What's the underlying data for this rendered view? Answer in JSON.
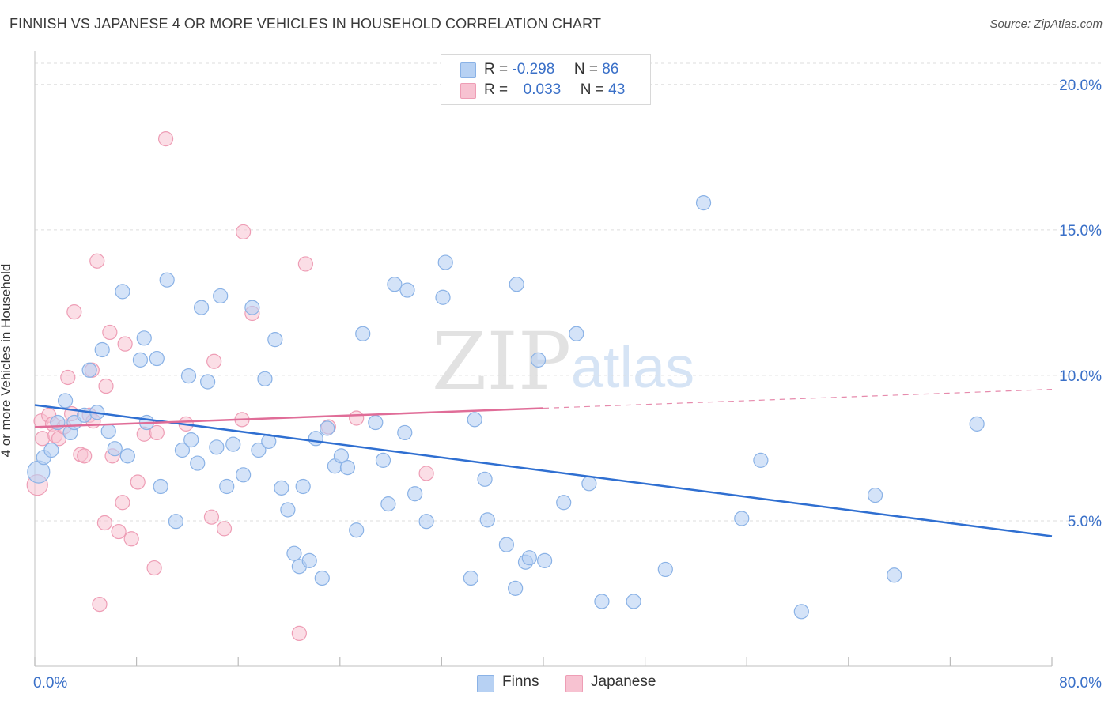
{
  "title": "FINNISH VS JAPANESE 4 OR MORE VEHICLES IN HOUSEHOLD CORRELATION CHART",
  "source": "Source: ZipAtlas.com",
  "watermark": {
    "zip": "ZIP",
    "atlas": "atlas"
  },
  "colors": {
    "finns_fill": "#b7d1f3",
    "finns_stroke": "#8ab2e6",
    "finns_line": "#2f6fd1",
    "japanese_fill": "#f7c2d1",
    "japanese_stroke": "#ee9db5",
    "japanese_line": "#e06d98",
    "axis_label": "#3a70c8",
    "grid": "#dddddd"
  },
  "legend": {
    "rows": [
      {
        "r_label": "R =",
        "r_value": "-0.298",
        "n_label": "N =",
        "n_value": "86"
      },
      {
        "r_label": "R =",
        "r_value": "0.033",
        "n_label": "N =",
        "n_value": "43"
      }
    ]
  },
  "bottom_legend": {
    "finns": "Finns",
    "japanese": "Japanese"
  },
  "chart_data": {
    "type": "scatter",
    "title": "FINNISH VS JAPANESE 4 OR MORE VEHICLES IN HOUSEHOLD CORRELATION CHART",
    "xlabel": "",
    "ylabel": "4 or more Vehicles in Household",
    "xlim": [
      0,
      80
    ],
    "ylim": [
      0,
      21
    ],
    "x_tick_labels": [
      "0.0%",
      "80.0%"
    ],
    "y_ticks": [
      5,
      10,
      15,
      20
    ],
    "y_tick_labels": [
      "5.0%",
      "10.0%",
      "15.0%",
      "20.0%"
    ],
    "grid": true,
    "legend_position": "top-center",
    "series": [
      {
        "name": "Finns",
        "r": -0.298,
        "n": 86,
        "trend": {
          "x": [
            0,
            80
          ],
          "y": [
            8.98,
            4.47
          ],
          "solid_until": 80
        },
        "points": [
          [
            0.3,
            6.68
          ],
          [
            0.7,
            7.18
          ],
          [
            1.3,
            7.43
          ],
          [
            1.8,
            8.38
          ],
          [
            2.4,
            9.13
          ],
          [
            2.8,
            8.03
          ],
          [
            3.1,
            8.38
          ],
          [
            3.9,
            8.63
          ],
          [
            4.3,
            10.18
          ],
          [
            4.9,
            8.73
          ],
          [
            5.3,
            10.88
          ],
          [
            5.8,
            8.08
          ],
          [
            6.3,
            7.48
          ],
          [
            7.3,
            7.23
          ],
          [
            6.9,
            12.88
          ],
          [
            8.3,
            10.53
          ],
          [
            8.6,
            11.28
          ],
          [
            8.8,
            8.38
          ],
          [
            9.6,
            10.58
          ],
          [
            9.9,
            6.18
          ],
          [
            10.4,
            13.28
          ],
          [
            11.1,
            4.98
          ],
          [
            11.6,
            7.43
          ],
          [
            12.1,
            9.98
          ],
          [
            12.3,
            7.78
          ],
          [
            12.8,
            6.98
          ],
          [
            13.1,
            12.33
          ],
          [
            13.6,
            9.78
          ],
          [
            14.3,
            7.53
          ],
          [
            14.6,
            12.73
          ],
          [
            15.1,
            6.18
          ],
          [
            15.6,
            7.63
          ],
          [
            16.4,
            6.58
          ],
          [
            17.1,
            12.33
          ],
          [
            17.6,
            7.43
          ],
          [
            18.1,
            9.88
          ],
          [
            18.4,
            7.73
          ],
          [
            18.9,
            11.23
          ],
          [
            19.4,
            6.13
          ],
          [
            19.9,
            5.38
          ],
          [
            20.4,
            3.88
          ],
          [
            20.8,
            3.43
          ],
          [
            21.1,
            6.18
          ],
          [
            21.6,
            3.63
          ],
          [
            22.1,
            7.83
          ],
          [
            22.6,
            3.03
          ],
          [
            23.0,
            8.18
          ],
          [
            23.6,
            6.88
          ],
          [
            24.1,
            7.23
          ],
          [
            24.6,
            6.83
          ],
          [
            25.3,
            4.68
          ],
          [
            25.8,
            11.43
          ],
          [
            26.8,
            8.38
          ],
          [
            27.4,
            7.08
          ],
          [
            27.8,
            5.58
          ],
          [
            28.3,
            13.13
          ],
          [
            29.3,
            12.93
          ],
          [
            29.1,
            8.03
          ],
          [
            29.9,
            5.93
          ],
          [
            30.8,
            4.98
          ],
          [
            32.1,
            12.68
          ],
          [
            32.3,
            13.88
          ],
          [
            34.6,
            8.48
          ],
          [
            34.3,
            3.03
          ],
          [
            35.4,
            6.43
          ],
          [
            35.6,
            5.03
          ],
          [
            37.1,
            4.18
          ],
          [
            37.8,
            2.68
          ],
          [
            37.9,
            13.13
          ],
          [
            38.6,
            3.58
          ],
          [
            38.9,
            3.73
          ],
          [
            39.6,
            10.53
          ],
          [
            40.1,
            3.63
          ],
          [
            41.6,
            5.63
          ],
          [
            42.6,
            11.43
          ],
          [
            43.6,
            6.28
          ],
          [
            44.6,
            2.23
          ],
          [
            47.1,
            2.23
          ],
          [
            49.6,
            3.33
          ],
          [
            52.6,
            15.93
          ],
          [
            55.6,
            5.08
          ],
          [
            57.1,
            7.08
          ],
          [
            60.3,
            1.88
          ],
          [
            66.1,
            5.88
          ],
          [
            67.6,
            3.13
          ],
          [
            74.1,
            8.33
          ]
        ]
      },
      {
        "name": "Japanese",
        "r": 0.033,
        "n": 43,
        "trend": {
          "x": [
            0,
            80
          ],
          "y": [
            8.22,
            9.52
          ],
          "solid_until": 40
        },
        "points": [
          [
            0.2,
            6.23
          ],
          [
            0.5,
            8.43
          ],
          [
            0.6,
            7.83
          ],
          [
            1.1,
            8.63
          ],
          [
            1.4,
            8.33
          ],
          [
            1.6,
            7.93
          ],
          [
            1.9,
            7.83
          ],
          [
            2.3,
            8.23
          ],
          [
            2.6,
            9.93
          ],
          [
            2.9,
            8.68
          ],
          [
            3.1,
            12.18
          ],
          [
            3.6,
            7.28
          ],
          [
            3.9,
            7.23
          ],
          [
            4.3,
            8.63
          ],
          [
            4.5,
            10.18
          ],
          [
            4.6,
            8.43
          ],
          [
            4.9,
            13.93
          ],
          [
            5.1,
            2.13
          ],
          [
            5.5,
            4.93
          ],
          [
            5.6,
            9.63
          ],
          [
            5.9,
            11.48
          ],
          [
            6.1,
            7.23
          ],
          [
            6.6,
            4.63
          ],
          [
            6.9,
            5.63
          ],
          [
            7.1,
            11.08
          ],
          [
            7.6,
            4.38
          ],
          [
            8.1,
            6.33
          ],
          [
            8.6,
            7.98
          ],
          [
            9.4,
            3.38
          ],
          [
            9.6,
            8.03
          ],
          [
            10.3,
            18.13
          ],
          [
            11.9,
            8.33
          ],
          [
            13.9,
            5.13
          ],
          [
            14.1,
            10.48
          ],
          [
            14.9,
            4.73
          ],
          [
            16.3,
            8.48
          ],
          [
            16.4,
            14.93
          ],
          [
            17.1,
            12.13
          ],
          [
            21.3,
            13.83
          ],
          [
            20.8,
            1.13
          ],
          [
            23.1,
            8.23
          ],
          [
            30.8,
            6.63
          ],
          [
            25.3,
            8.53
          ]
        ]
      }
    ]
  }
}
